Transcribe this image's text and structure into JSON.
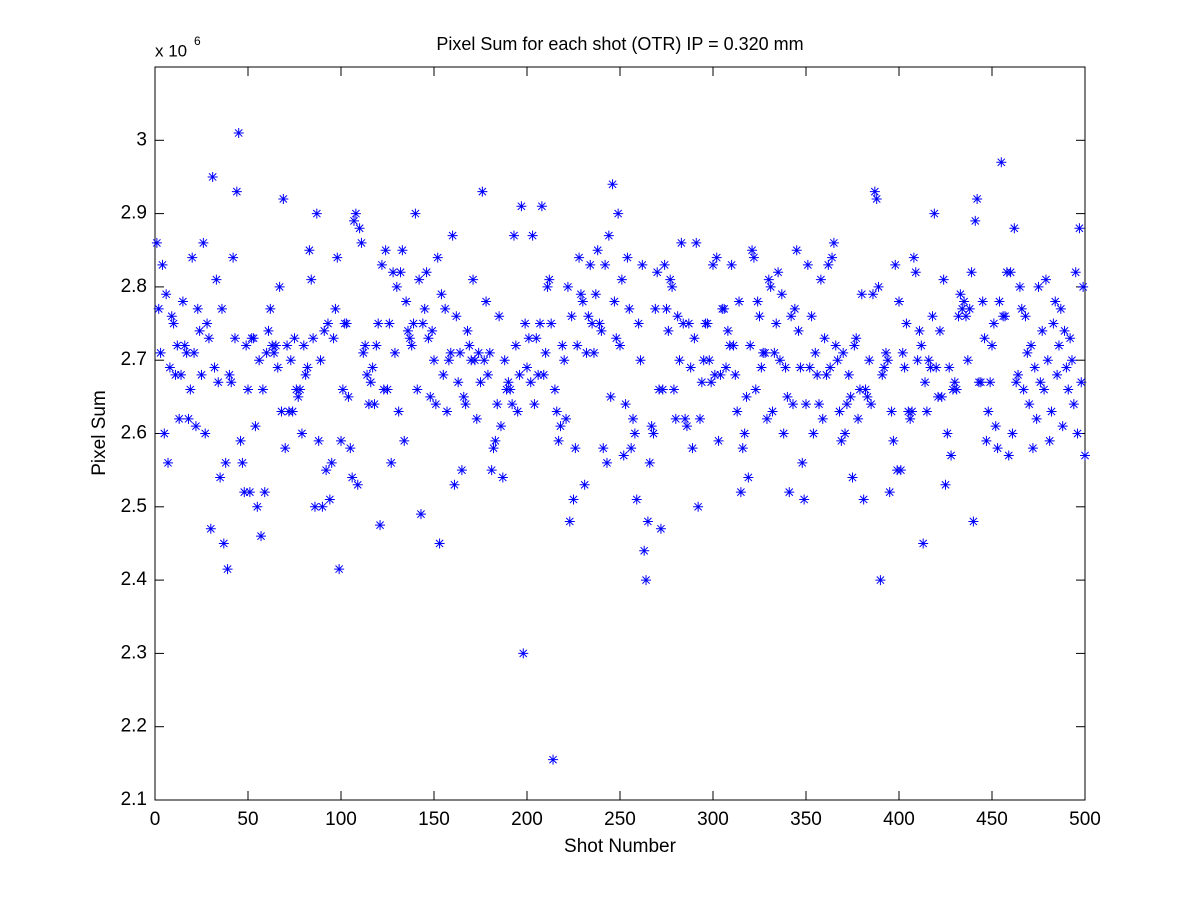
{
  "chart_data": {
    "type": "scatter",
    "title": "Pixel Sum for each shot (OTR) IP = 0.320 mm",
    "x_label": "Shot Number",
    "y_label": "Pixel Sum",
    "y_multiplier": {
      "base": "x 10",
      "exponent": "6"
    },
    "xlim": [
      0,
      500
    ],
    "xticks": [
      0,
      50,
      100,
      150,
      200,
      250,
      300,
      350,
      400,
      450,
      500
    ],
    "ylim": [
      2.1,
      3.1
    ],
    "yticks": [
      2.1,
      2.2,
      2.3,
      2.4,
      2.5,
      2.6,
      2.7,
      2.8,
      2.9,
      3
    ],
    "grid": false,
    "marker": "asterisk",
    "series": [
      {
        "color": "#0000ff",
        "x": [
          1,
          2,
          3,
          4,
          5,
          6,
          7,
          8,
          9,
          10,
          11,
          12,
          13,
          14,
          15,
          16,
          17,
          18,
          19,
          20,
          21,
          22,
          23,
          24,
          25,
          26,
          27,
          28,
          29,
          30,
          31,
          32,
          33,
          34,
          35,
          36,
          37,
          38,
          39,
          40,
          41,
          42,
          43,
          44,
          45,
          46,
          47,
          48,
          49,
          50,
          51,
          52,
          53,
          54,
          55,
          56,
          57,
          58,
          59,
          60,
          61,
          62,
          63,
          64,
          65,
          66,
          67,
          68,
          69,
          70,
          71,
          72,
          73,
          74,
          75,
          76,
          77,
          78,
          79,
          80,
          81,
          82,
          83,
          84,
          85,
          86,
          87,
          88,
          89,
          90,
          91,
          92,
          93,
          94,
          95,
          96,
          97,
          98,
          99,
          100,
          101,
          102,
          103,
          104,
          105,
          106,
          107,
          108,
          109,
          110,
          111,
          112,
          113,
          114,
          115,
          116,
          117,
          118,
          119,
          120,
          121,
          122,
          123,
          124,
          125,
          126,
          127,
          128,
          129,
          130,
          131,
          132,
          133,
          134,
          135,
          136,
          137,
          138,
          139,
          140,
          141,
          142,
          143,
          144,
          145,
          146,
          147,
          148,
          149,
          150,
          151,
          152,
          153,
          154,
          155,
          156,
          157,
          158,
          159,
          160,
          161,
          162,
          163,
          164,
          165,
          166,
          167,
          168,
          169,
          170,
          171,
          172,
          173,
          174,
          175,
          176,
          177,
          178,
          179,
          180,
          181,
          182,
          183,
          184,
          185,
          186,
          187,
          188,
          189,
          190,
          191,
          192,
          193,
          194,
          195,
          196,
          197,
          198,
          199,
          200,
          201,
          202,
          203,
          204,
          205,
          206,
          207,
          208,
          209,
          210,
          211,
          212,
          213,
          214,
          215,
          216,
          217,
          218,
          219,
          220,
          221,
          222,
          223,
          224,
          225,
          226,
          227,
          228,
          229,
          230,
          231,
          232,
          233,
          234,
          235,
          236,
          237,
          238,
          239,
          240,
          241,
          242,
          243,
          244,
          245,
          246,
          247,
          248,
          249,
          250,
          251,
          252,
          253,
          254,
          255,
          256,
          257,
          258,
          259,
          260,
          261,
          262,
          263,
          264,
          265,
          266,
          267,
          268,
          269,
          270,
          271,
          272,
          273,
          274,
          275,
          276,
          277,
          278,
          279,
          280,
          281,
          282,
          283,
          284,
          285,
          286,
          287,
          288,
          289,
          290,
          291,
          292,
          293,
          294,
          295,
          296,
          297,
          298,
          299,
          300,
          301,
          302,
          303,
          304,
          305,
          306,
          307,
          308,
          309,
          310,
          311,
          312,
          313,
          314,
          315,
          316,
          317,
          318,
          319,
          320,
          321,
          322,
          323,
          324,
          325,
          326,
          327,
          328,
          329,
          330,
          331,
          332,
          333,
          334,
          335,
          336,
          337,
          338,
          339,
          340,
          341,
          342,
          343,
          344,
          345,
          346,
          347,
          348,
          349,
          350,
          351,
          352,
          353,
          354,
          355,
          356,
          357,
          358,
          359,
          360,
          361,
          362,
          363,
          364,
          365,
          366,
          367,
          368,
          369,
          370,
          371,
          372,
          373,
          374,
          375,
          376,
          377,
          378,
          379,
          380,
          381,
          382,
          383,
          384,
          385,
          386,
          387,
          388,
          389,
          390,
          391,
          392,
          393,
          394,
          395,
          396,
          397,
          398,
          399,
          400,
          401,
          402,
          403,
          404,
          405,
          406,
          407,
          408,
          409,
          410,
          411,
          412,
          413,
          414,
          415,
          416,
          417,
          418,
          419,
          420,
          421,
          422,
          423,
          424,
          425,
          426,
          427,
          428,
          429,
          430,
          431,
          432,
          433,
          434,
          435,
          436,
          437,
          438,
          439,
          440,
          441,
          442,
          443,
          444,
          445,
          446,
          447,
          448,
          449,
          450,
          451,
          452,
          453,
          454,
          455,
          456,
          457,
          458,
          459,
          460,
          461,
          462,
          463,
          464,
          465,
          466,
          467,
          468,
          469,
          470,
          471,
          472,
          473,
          474,
          475,
          476,
          477,
          478,
          479,
          480,
          481,
          482,
          483,
          484,
          485,
          486,
          487,
          488,
          489,
          490,
          491,
          492,
          493,
          494,
          495,
          496,
          497,
          498,
          499,
          500
        ],
        "values": [
          2.86,
          2.77,
          2.71,
          2.83,
          2.6,
          2.79,
          2.56,
          2.69,
          2.76,
          2.75,
          2.68,
          2.72,
          2.62,
          2.68,
          2.78,
          2.72,
          2.71,
          2.62,
          2.66,
          2.84,
          2.71,
          2.61,
          2.77,
          2.74,
          2.68,
          2.86,
          2.6,
          2.75,
          2.73,
          2.47,
          2.95,
          2.69,
          2.81,
          2.67,
          2.54,
          2.77,
          2.45,
          2.56,
          2.415,
          2.68,
          2.67,
          2.84,
          2.73,
          2.93,
          3.01,
          2.59,
          2.56,
          2.52,
          2.72,
          2.66,
          2.52,
          2.73,
          2.73,
          2.61,
          2.5,
          2.7,
          2.46,
          2.66,
          2.52,
          2.71,
          2.74,
          2.77,
          2.72,
          2.71,
          2.72,
          2.69,
          2.8,
          2.63,
          2.92,
          2.58,
          2.72,
          2.63,
          2.7,
          2.63,
          2.73,
          2.66,
          2.65,
          2.66,
          2.6,
          2.72,
          2.68,
          2.69,
          2.85,
          2.81,
          2.73,
          2.5,
          2.9,
          2.59,
          2.7,
          2.5,
          2.74,
          2.55,
          2.75,
          2.51,
          2.56,
          2.73,
          2.77,
          2.84,
          2.415,
          2.59,
          2.66,
          2.75,
          2.75,
          2.65,
          2.58,
          2.54,
          2.89,
          2.9,
          2.53,
          2.88,
          2.86,
          2.71,
          2.72,
          2.68,
          2.64,
          2.67,
          2.69,
          2.64,
          2.72,
          2.75,
          2.475,
          2.83,
          2.66,
          2.85,
          2.66,
          2.75,
          2.56,
          2.82,
          2.71,
          2.8,
          2.63,
          2.82,
          2.85,
          2.59,
          2.78,
          2.74,
          2.73,
          2.72,
          2.75,
          2.9,
          2.66,
          2.81,
          2.49,
          2.75,
          2.77,
          2.82,
          2.73,
          2.65,
          2.74,
          2.7,
          2.64,
          2.84,
          2.45,
          2.79,
          2.68,
          2.77,
          2.63,
          2.7,
          2.71,
          2.87,
          2.53,
          2.76,
          2.67,
          2.71,
          2.55,
          2.65,
          2.64,
          2.74,
          2.72,
          2.7,
          2.81,
          2.7,
          2.62,
          2.71,
          2.67,
          2.93,
          2.7,
          2.78,
          2.68,
          2.71,
          2.55,
          2.58,
          2.59,
          2.64,
          2.76,
          2.61,
          2.54,
          2.7,
          2.66,
          2.67,
          2.66,
          2.64,
          2.87,
          2.72,
          2.63,
          2.68,
          2.91,
          2.3,
          2.75,
          2.69,
          2.73,
          2.67,
          2.87,
          2.64,
          2.73,
          2.68,
          2.75,
          2.91,
          2.68,
          2.71,
          2.8,
          2.81,
          2.75,
          2.155,
          2.66,
          2.63,
          2.59,
          2.61,
          2.72,
          2.7,
          2.62,
          2.8,
          2.48,
          2.76,
          2.51,
          2.58,
          2.72,
          2.84,
          2.79,
          2.78,
          2.53,
          2.71,
          2.76,
          2.83,
          2.75,
          2.71,
          2.79,
          2.85,
          2.75,
          2.74,
          2.58,
          2.83,
          2.56,
          2.87,
          2.65,
          2.94,
          2.78,
          2.73,
          2.9,
          2.72,
          2.81,
          2.57,
          2.64,
          2.84,
          2.77,
          2.58,
          2.62,
          2.6,
          2.51,
          2.75,
          2.7,
          2.83,
          2.44,
          2.4,
          2.48,
          2.56,
          2.61,
          2.6,
          2.77,
          2.82,
          2.66,
          2.47,
          2.66,
          2.83,
          2.77,
          2.74,
          2.81,
          2.8,
          2.66,
          2.62,
          2.76,
          2.7,
          2.86,
          2.75,
          2.62,
          2.61,
          2.75,
          2.69,
          2.58,
          2.73,
          2.86,
          2.5,
          2.62,
          2.67,
          2.7,
          2.75,
          2.75,
          2.7,
          2.67,
          2.83,
          2.68,
          2.84,
          2.59,
          2.68,
          2.77,
          2.77,
          2.69,
          2.74,
          2.72,
          2.83,
          2.72,
          2.68,
          2.63,
          2.78,
          2.52,
          2.58,
          2.6,
          2.65,
          2.54,
          2.72,
          2.85,
          2.84,
          2.66,
          2.78,
          2.76,
          2.69,
          2.71,
          2.71,
          2.62,
          2.81,
          2.8,
          2.63,
          2.71,
          2.75,
          2.82,
          2.7,
          2.79,
          2.6,
          2.69,
          2.65,
          2.52,
          2.76,
          2.64,
          2.77,
          2.85,
          2.74,
          2.69,
          2.56,
          2.51,
          2.64,
          2.83,
          2.69,
          2.76,
          2.6,
          2.71,
          2.68,
          2.64,
          2.81,
          2.62,
          2.73,
          2.68,
          2.83,
          2.69,
          2.84,
          2.86,
          2.72,
          2.7,
          2.63,
          2.59,
          2.71,
          2.6,
          2.64,
          2.68,
          2.65,
          2.54,
          2.72,
          2.73,
          2.62,
          2.66,
          2.79,
          2.51,
          2.66,
          2.65,
          2.7,
          2.64,
          2.79,
          2.93,
          2.92,
          2.8,
          2.4,
          2.68,
          2.69,
          2.71,
          2.7,
          2.52,
          2.63,
          2.59,
          2.83,
          2.55,
          2.78,
          2.55,
          2.71,
          2.69,
          2.75,
          2.63,
          2.62,
          2.63,
          2.84,
          2.82,
          2.7,
          2.74,
          2.72,
          2.45,
          2.67,
          2.63,
          2.7,
          2.69,
          2.76,
          2.9,
          2.69,
          2.65,
          2.74,
          2.65,
          2.81,
          2.53,
          2.6,
          2.69,
          2.57,
          2.66,
          2.67,
          2.66,
          2.76,
          2.79,
          2.77,
          2.78,
          2.76,
          2.7,
          2.77,
          2.82,
          2.48,
          2.89,
          2.92,
          2.67,
          2.67,
          2.78,
          2.73,
          2.59,
          2.63,
          2.67,
          2.72,
          2.75,
          2.61,
          2.58,
          2.78,
          2.97,
          2.76,
          2.76,
          2.82,
          2.57,
          2.82,
          2.6,
          2.88,
          2.67,
          2.68,
          2.8,
          2.77,
          2.66,
          2.76,
          2.71,
          2.64,
          2.72,
          2.58,
          2.69,
          2.62,
          2.8,
          2.67,
          2.74,
          2.66,
          2.81,
          2.7,
          2.59,
          2.63,
          2.75,
          2.78,
          2.68,
          2.72,
          2.77,
          2.61,
          2.74,
          2.69,
          2.66,
          2.73,
          2.7,
          2.64,
          2.82,
          2.6,
          2.88,
          2.67,
          2.8,
          2.57
        ]
      }
    ]
  }
}
